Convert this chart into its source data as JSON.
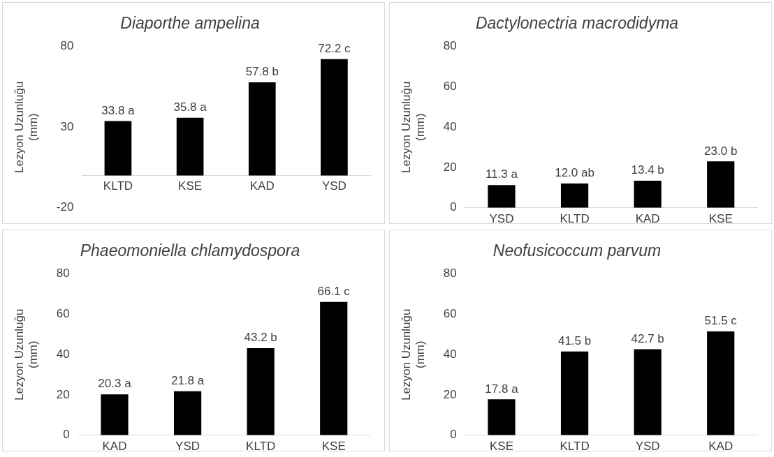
{
  "chart_data": [
    {
      "type": "bar",
      "title": "Diaporthe ampelina",
      "ylabel": "Lezyon Uzunluğu (mm)",
      "categories": [
        "KLTD",
        "KSE",
        "KAD",
        "YSD"
      ],
      "values": [
        33.8,
        35.8,
        57.8,
        72.2
      ],
      "value_labels": [
        "33.8 a",
        "35.8 a",
        "57.8 b",
        "72.2 c"
      ],
      "color": "#000000",
      "ylim": [
        -20,
        80
      ],
      "yticks": [
        -20,
        30,
        80
      ]
    },
    {
      "type": "bar",
      "title": "Dactylonectria macrodidyma",
      "ylabel": "Lezyon Uzunluğu (mm)",
      "categories": [
        "YSD",
        "KLTD",
        "KAD",
        "KSE"
      ],
      "values": [
        11.3,
        12.0,
        13.4,
        23.0
      ],
      "value_labels": [
        "11.3 a",
        "12.0 ab",
        "13.4 b",
        "23.0 b"
      ],
      "color": "#000000",
      "ylim": [
        0,
        80
      ],
      "yticks": [
        0,
        20,
        40,
        60,
        80
      ]
    },
    {
      "type": "bar",
      "title": "Phaeomoniella chlamydospora",
      "ylabel": "Lezyon Uzunluğu (mm)",
      "categories": [
        "KAD",
        "YSD",
        "KLTD",
        "KSE"
      ],
      "values": [
        20.3,
        21.8,
        43.2,
        66.1
      ],
      "value_labels": [
        "20.3 a",
        "21.8 a",
        "43.2 b",
        "66.1 c"
      ],
      "color": "#000000",
      "ylim": [
        0,
        80
      ],
      "yticks": [
        0,
        20,
        40,
        60,
        80
      ]
    },
    {
      "type": "bar",
      "title": "Neofusicoccum parvum",
      "ylabel": "Lezyon Uzunluğu (mm)",
      "categories": [
        "KSE",
        "KLTD",
        "YSD",
        "KAD"
      ],
      "values": [
        17.8,
        41.5,
        42.7,
        51.5
      ],
      "value_labels": [
        "17.8 a",
        "41.5 b",
        "42.7 b",
        "51.5 c"
      ],
      "color": "#000000",
      "ylim": [
        0,
        80
      ],
      "yticks": [
        0,
        20,
        40,
        60,
        80
      ]
    }
  ]
}
